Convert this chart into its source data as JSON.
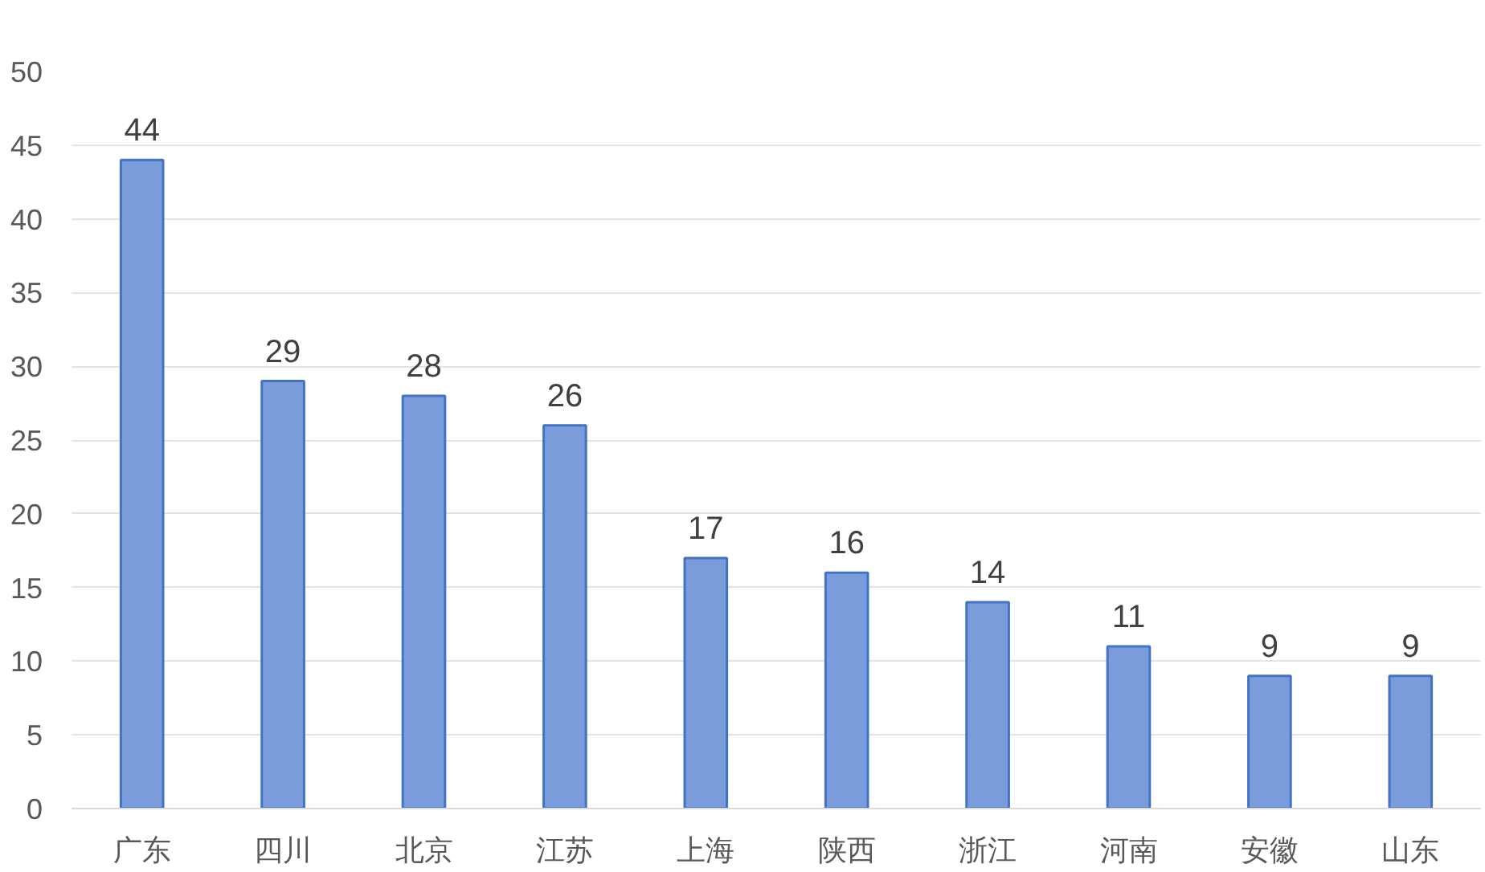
{
  "chart_data": {
    "type": "bar",
    "categories": [
      "广东",
      "四川",
      "北京",
      "江苏",
      "上海",
      "陕西",
      "浙江",
      "河南",
      "安徽",
      "山东"
    ],
    "values": [
      44,
      29,
      28,
      26,
      17,
      16,
      14,
      11,
      9,
      9
    ],
    "color": "#7b9cdb",
    "ylim": [
      0,
      50
    ],
    "yticks": [
      0,
      5,
      10,
      15,
      20,
      25,
      30,
      35,
      40,
      45,
      50
    ],
    "grid": "y",
    "data_labels": true
  }
}
